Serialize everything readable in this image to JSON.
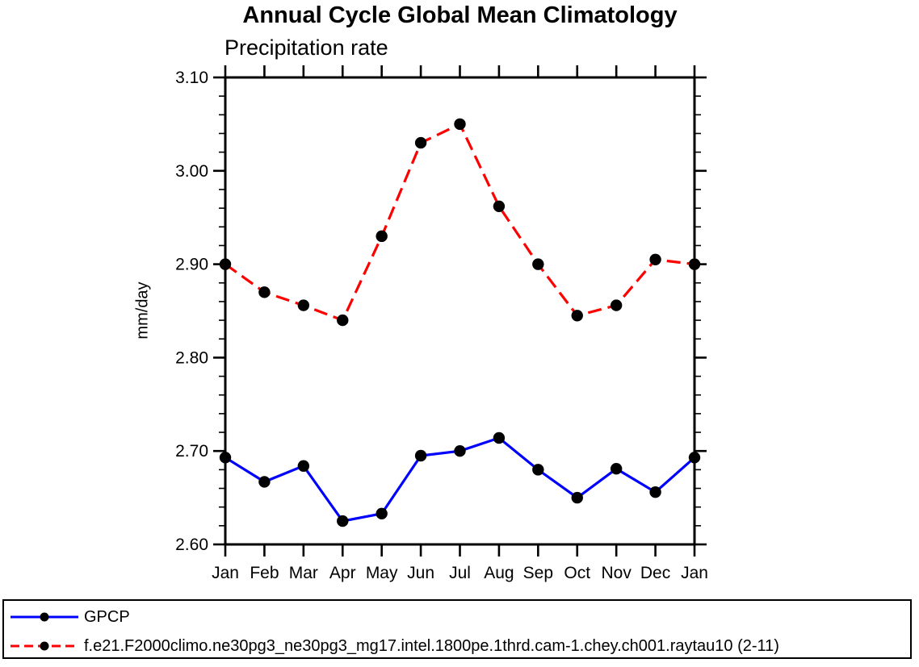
{
  "figure": {
    "background": "#ffffff",
    "axis_color": "#000000"
  },
  "chart_data": {
    "type": "line",
    "title": "Annual Cycle Global Mean Climatology",
    "subtitle": "Precipitation rate",
    "ylabel": "mm/day",
    "categories": [
      "Jan",
      "Feb",
      "Mar",
      "Apr",
      "May",
      "Jun",
      "Jul",
      "Aug",
      "Sep",
      "Oct",
      "Nov",
      "Dec",
      "Jan"
    ],
    "ylim": [
      2.6,
      3.1
    ],
    "yticks": [
      "2.60",
      "2.70",
      "2.80",
      "2.90",
      "3.00",
      "3.10"
    ],
    "yminor_step": 0.02,
    "grid": false,
    "legend_position": "bottom-box",
    "series": [
      {
        "name": "GPCP",
        "color": "#0000ff",
        "line_style": "solid",
        "marker": "filled-circle",
        "marker_color": "#000000",
        "values": [
          2.693,
          2.667,
          2.684,
          2.625,
          2.633,
          2.695,
          2.7,
          2.714,
          2.68,
          2.65,
          2.681,
          2.656,
          2.693
        ]
      },
      {
        "name": "f.e21.F2000climo.ne30pg3_ne30pg3_mg17.intel.1800pe.1thrd.cam-1.chey.ch001.raytau10 (2-11)",
        "color": "#ff0000",
        "line_style": "dashed",
        "marker": "filled-circle",
        "marker_color": "#000000",
        "values": [
          2.9,
          2.87,
          2.856,
          2.84,
          2.93,
          3.03,
          3.05,
          2.962,
          2.9,
          2.845,
          2.856,
          2.905,
          2.9
        ]
      }
    ]
  }
}
